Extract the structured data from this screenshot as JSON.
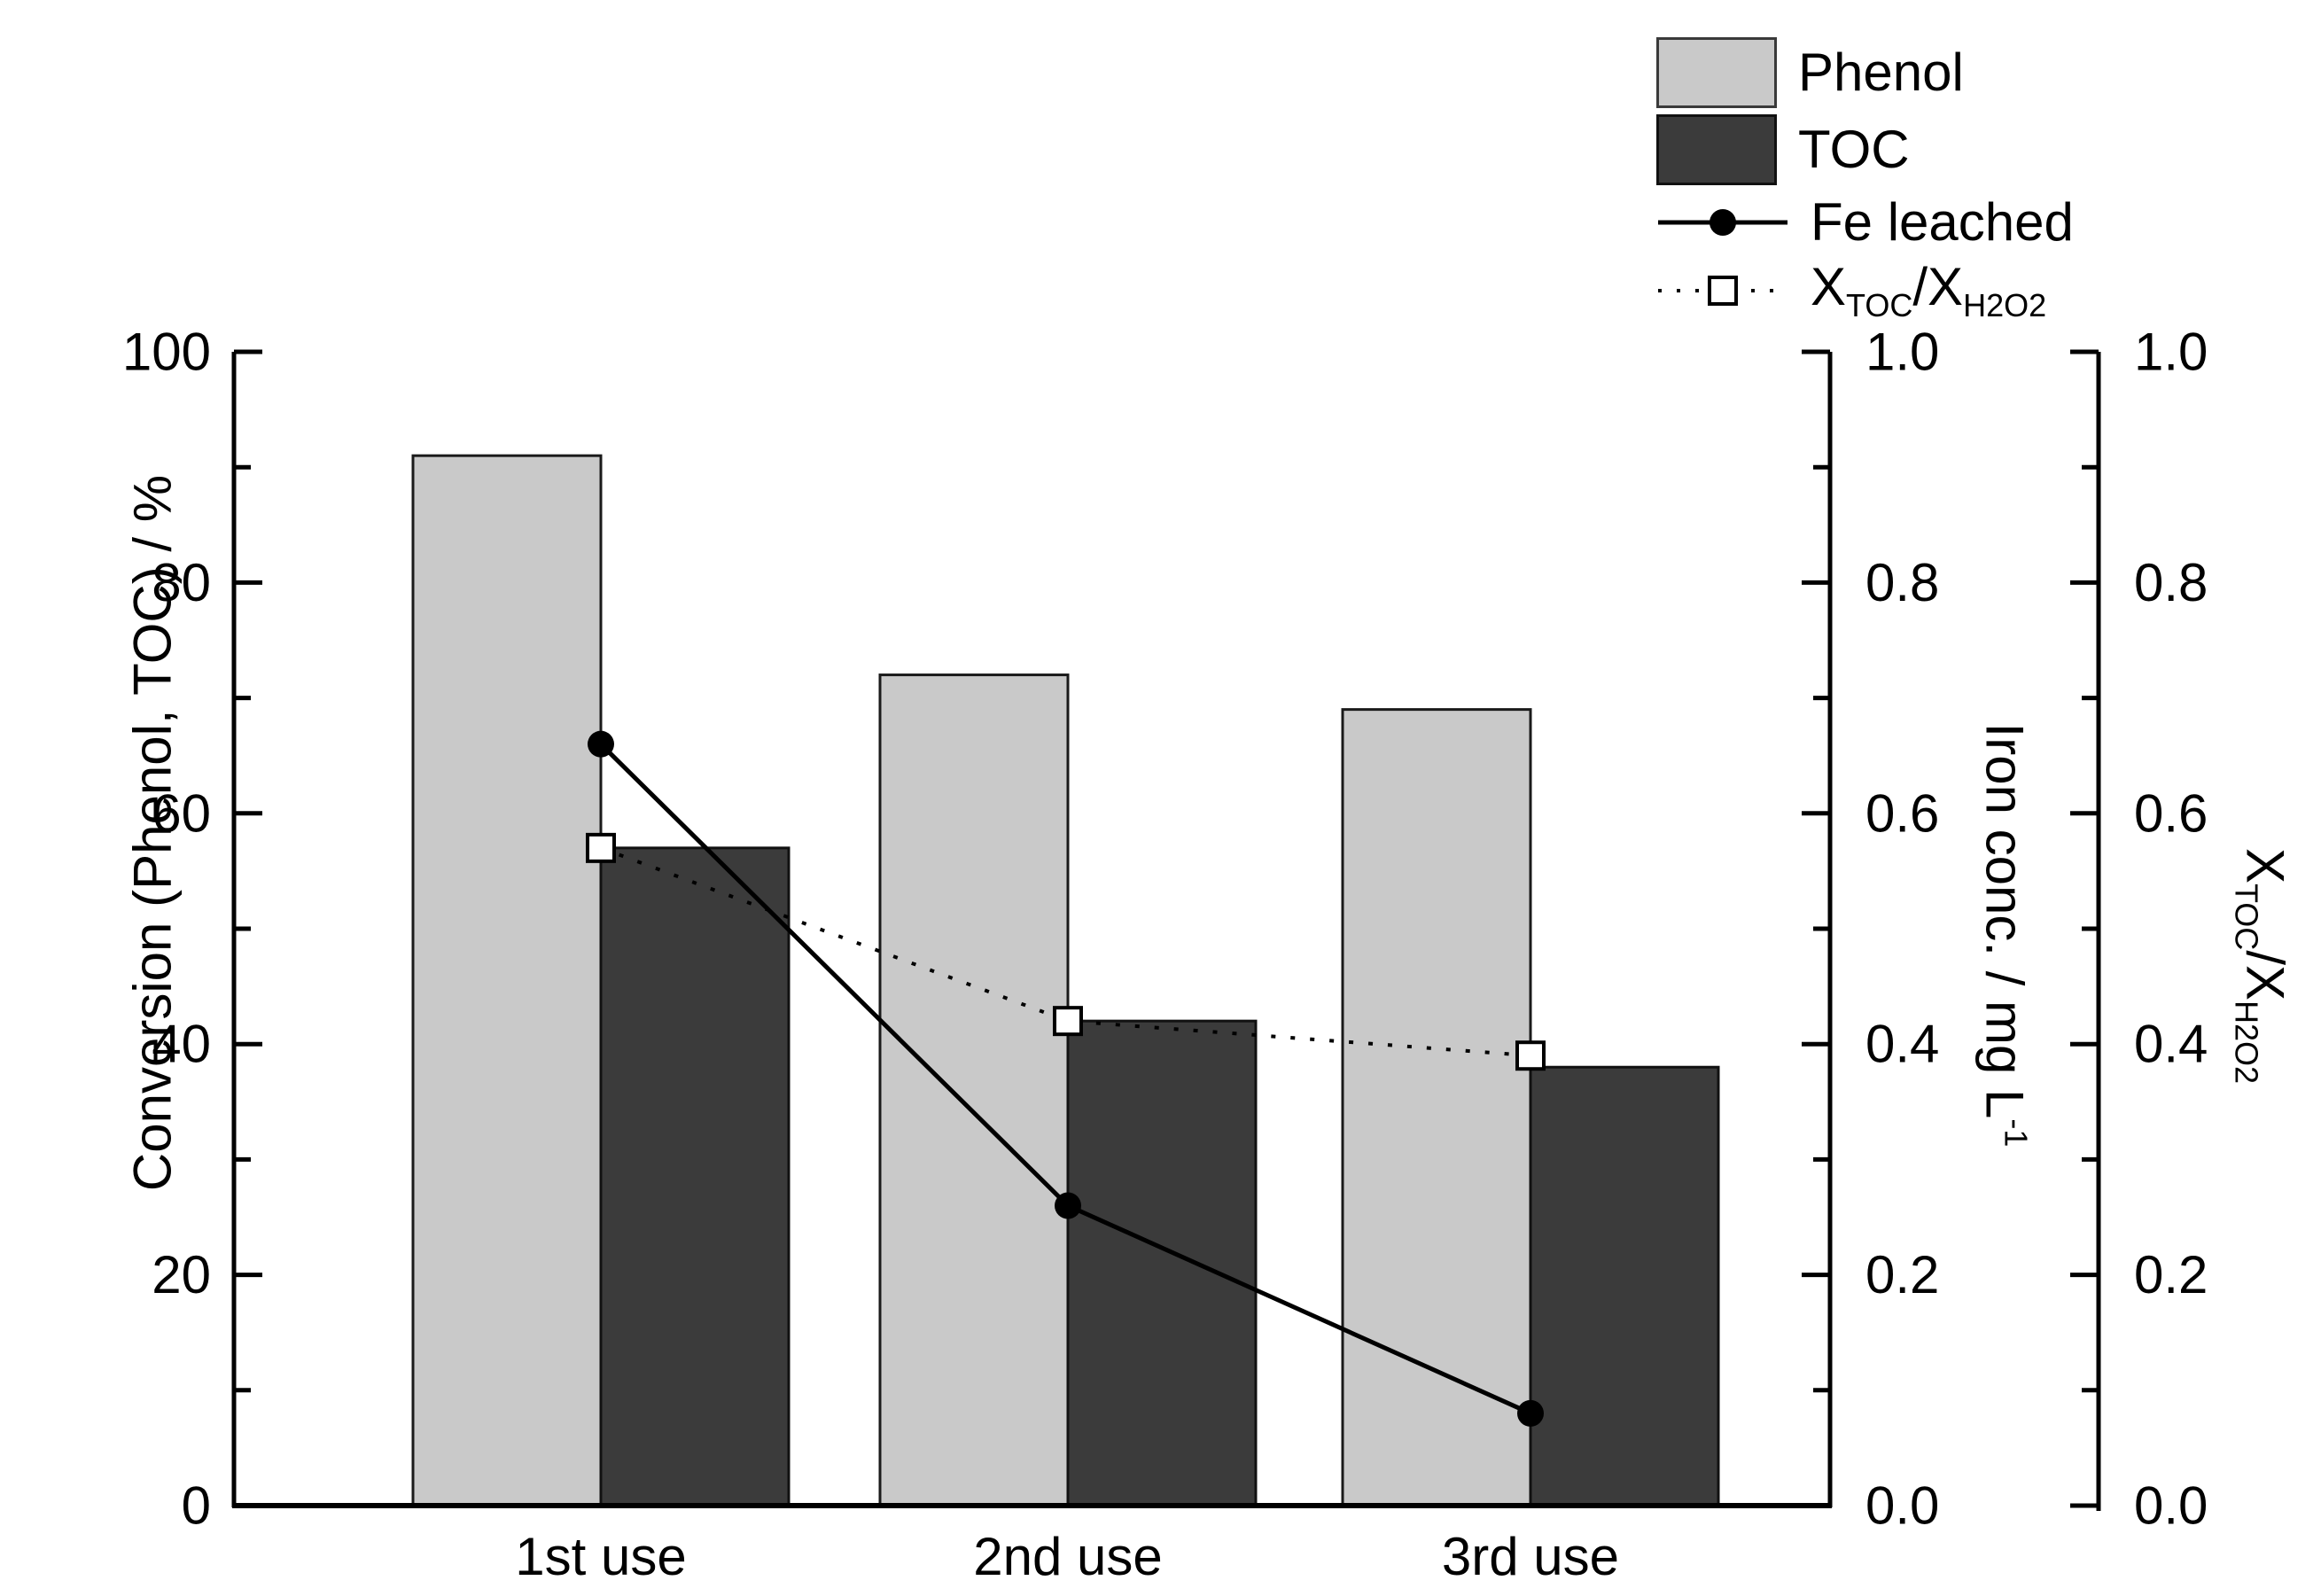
{
  "figure": {
    "background": "#ffffff",
    "text_color": "#000000"
  },
  "legend": {
    "position": "top-right",
    "items": [
      {
        "label": "Phenol",
        "swatch": "filled-box",
        "color": "#c9c9c9"
      },
      {
        "label": "TOC",
        "swatch": "filled-box",
        "color": "#3b3b3b"
      },
      {
        "label": "Fe leached",
        "swatch": "solid-line-filled-circle",
        "color": "#000000"
      },
      {
        "base1": "X",
        "sub1": "TOC",
        "sep": "/",
        "base2": "X",
        "sub2": "H2O2",
        "swatch": "dotted-line-open-square",
        "color": "#000000"
      }
    ]
  },
  "chart_data": {
    "type": "bar+line combo",
    "grid": false,
    "categories": [
      "1st use",
      "2nd use",
      "3rd use"
    ],
    "series": [
      {
        "name": "Phenol",
        "type": "bar",
        "axis": "left",
        "values": [
          91,
          72,
          69
        ],
        "fill": "#c9c9c9",
        "stroke": "#1a1a1a"
      },
      {
        "name": "TOC",
        "type": "bar",
        "axis": "left",
        "values": [
          57,
          42,
          38
        ],
        "fill": "#3b3b3b",
        "stroke": "#111111"
      },
      {
        "name": "Fe leached",
        "type": "line",
        "axis": "right_iron",
        "values": [
          0.66,
          0.26,
          0.08
        ],
        "marker": "filled-circle",
        "line_style": "solid",
        "color": "#000000"
      },
      {
        "name": "X_TOC/X_H2O2",
        "type": "line",
        "axis": "right_ratio",
        "values": [
          0.57,
          0.42,
          0.39
        ],
        "marker": "open-square",
        "line_style": "dotted",
        "color": "#000000"
      }
    ],
    "axes": {
      "left": {
        "title": "Conversion (Phenol, TOC) / %",
        "min": 0,
        "max": 100,
        "major_ticks": [
          0,
          20,
          40,
          60,
          80,
          100
        ],
        "tick_labels": [
          "0",
          "20",
          "40",
          "60",
          "80",
          "100"
        ],
        "minor_ticks": [
          10,
          30,
          50,
          70,
          90
        ]
      },
      "right_iron": {
        "title_text": "Iron conc. / mg L",
        "title_sup": "-1",
        "min": 0.0,
        "max": 1.0,
        "major_ticks": [
          0,
          0.2,
          0.4,
          0.6,
          0.8,
          1.0
        ],
        "tick_labels": [
          "0.0",
          "0.2",
          "0.4",
          "0.6",
          "0.8",
          "1.0"
        ],
        "minor_ticks": [
          0.1,
          0.3,
          0.5,
          0.7,
          0.9
        ]
      },
      "right_ratio": {
        "title_base1": "X",
        "title_sub1": "TOC",
        "title_sep": "/",
        "title_base2": "X",
        "title_sub2": "H2O2",
        "min": 0.0,
        "max": 1.0,
        "major_ticks": [
          0,
          0.2,
          0.4,
          0.6,
          0.8,
          1.0
        ],
        "tick_labels": [
          "0.0",
          "0.2",
          "0.4",
          "0.6",
          "0.8",
          "1.0"
        ],
        "minor_ticks": [
          0.1,
          0.3,
          0.5,
          0.7,
          0.9
        ]
      }
    }
  }
}
